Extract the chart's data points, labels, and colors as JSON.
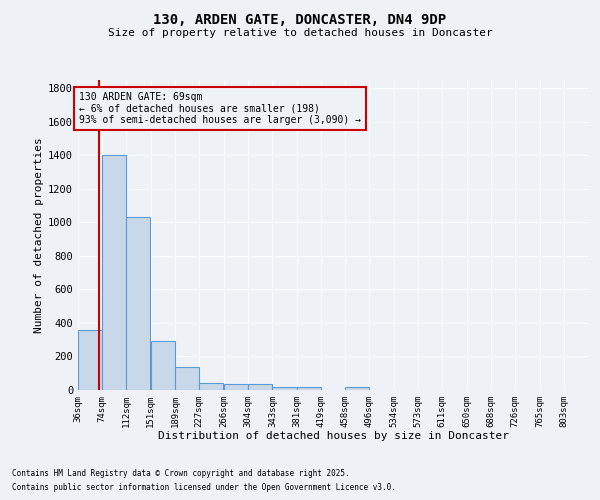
{
  "title1": "130, ARDEN GATE, DONCASTER, DN4 9DP",
  "title2": "Size of property relative to detached houses in Doncaster",
  "xlabel": "Distribution of detached houses by size in Doncaster",
  "ylabel": "Number of detached properties",
  "bin_labels": [
    "36sqm",
    "74sqm",
    "112sqm",
    "151sqm",
    "189sqm",
    "227sqm",
    "266sqm",
    "304sqm",
    "343sqm",
    "381sqm",
    "419sqm",
    "458sqm",
    "496sqm",
    "534sqm",
    "573sqm",
    "611sqm",
    "650sqm",
    "688sqm",
    "726sqm",
    "765sqm",
    "803sqm"
  ],
  "bin_edges": [
    36,
    74,
    112,
    151,
    189,
    227,
    266,
    304,
    343,
    381,
    419,
    458,
    496,
    534,
    573,
    611,
    650,
    688,
    726,
    765,
    803
  ],
  "bar_heights": [
    360,
    1400,
    1030,
    290,
    135,
    40,
    35,
    35,
    20,
    20,
    0,
    20,
    0,
    0,
    0,
    0,
    0,
    0,
    0,
    0,
    0
  ],
  "bar_color": "#c8d8e8",
  "bar_edge_color": "#5b9bd5",
  "property_size": 69,
  "vline_color": "#cc0000",
  "annotation_text": "130 ARDEN GATE: 69sqm\n← 6% of detached houses are smaller (198)\n93% of semi-detached houses are larger (3,090) →",
  "annotation_box_color": "#cc0000",
  "ylim": [
    0,
    1850
  ],
  "yticks": [
    0,
    200,
    400,
    600,
    800,
    1000,
    1200,
    1400,
    1600,
    1800
  ],
  "bg_color": "#eef2f7",
  "grid_color": "#ffffff",
  "footer1": "Contains HM Land Registry data © Crown copyright and database right 2025.",
  "footer2": "Contains public sector information licensed under the Open Government Licence v3.0."
}
